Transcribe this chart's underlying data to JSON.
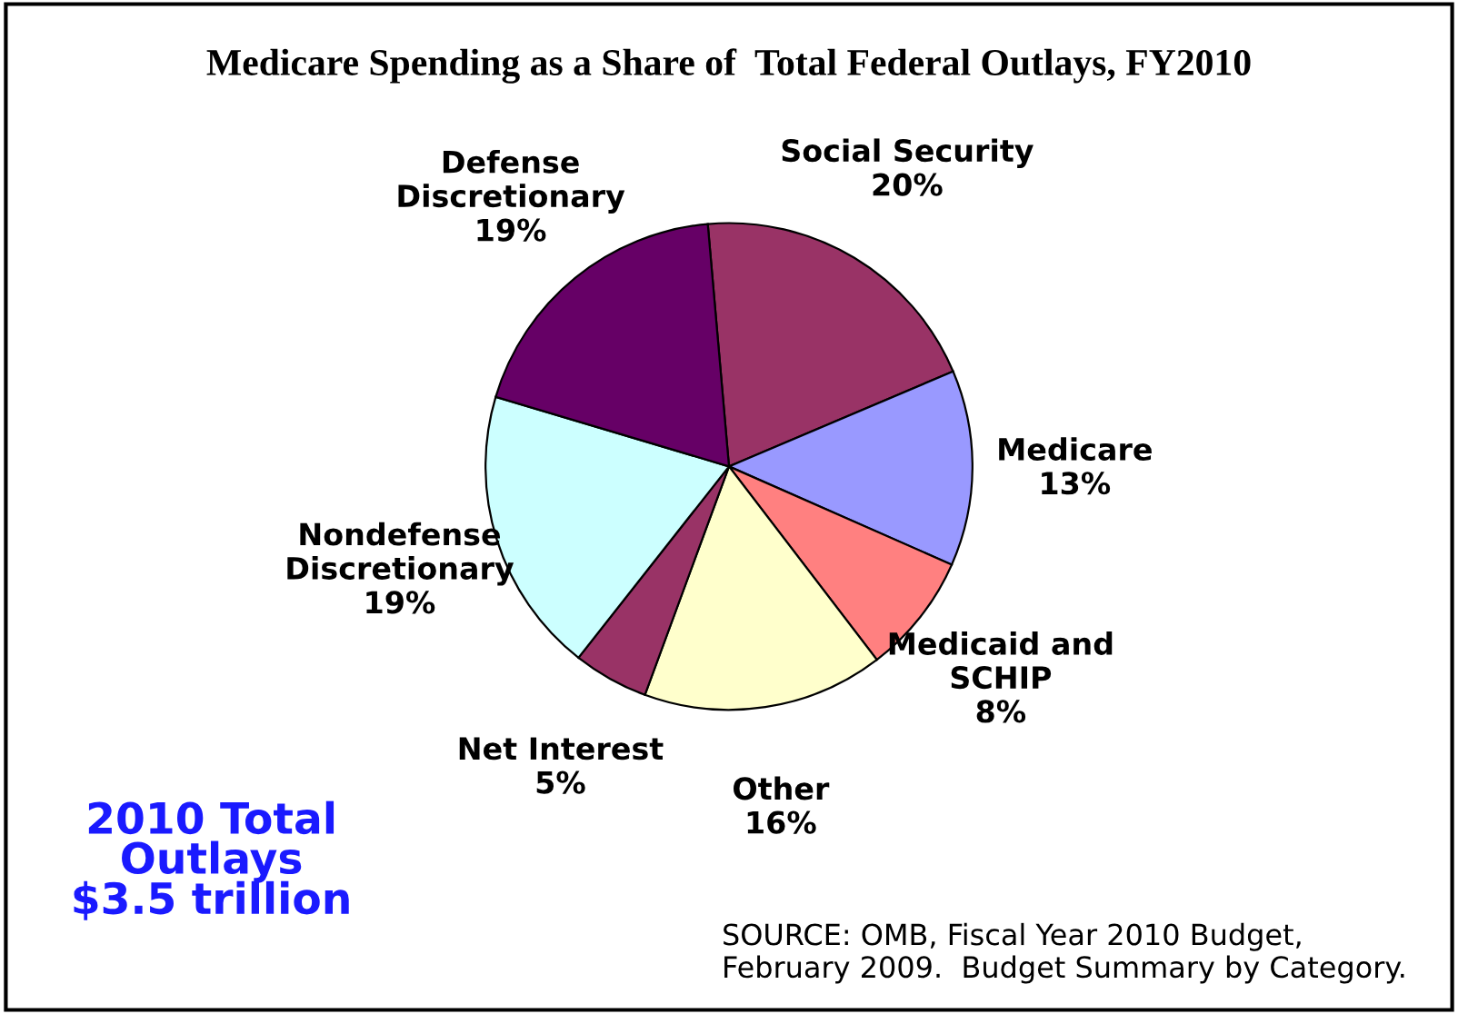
{
  "chart_data": {
    "type": "pie",
    "title": "Medicare Spending as a Share of  Total Federal Outlays, FY2010",
    "categories": [
      "Social Security",
      "Medicare",
      "Medicaid and\nSCHIP",
      "Other",
      "Net Interest",
      "Nondefense\nDiscretionary",
      "Defense\nDiscretionary"
    ],
    "values": [
      20,
      13,
      8,
      16,
      5,
      19,
      19
    ],
    "value_labels": [
      "20%",
      "13%",
      "8%",
      "16%",
      "5%",
      "19%",
      "19%"
    ],
    "colors": [
      "#993366",
      "#9999ff",
      "#ff8080",
      "#ffffcc",
      "#993366",
      "#ccffff",
      "#660066"
    ],
    "legend": false,
    "annotations": [
      "2010 Total\nOutlays\n$3.5 trillion",
      "SOURCE: OMB, Fiscal Year 2010 Budget,\nFebruary 2009.  Budget Summary by Category."
    ]
  }
}
